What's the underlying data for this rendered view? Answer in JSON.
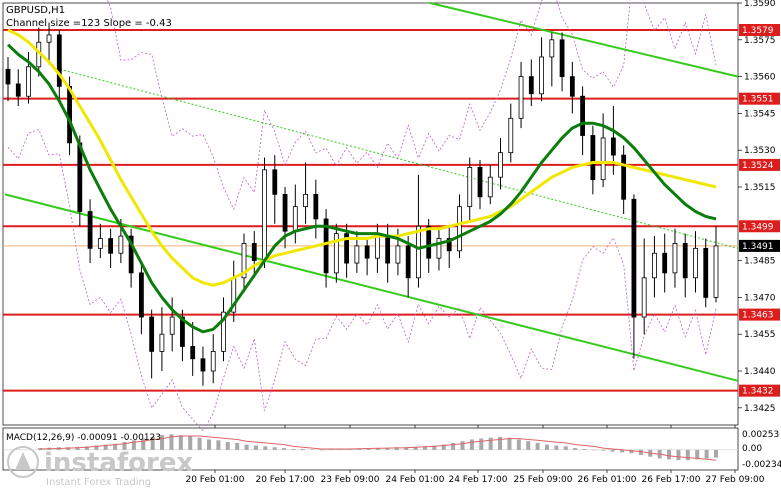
{
  "header": {
    "symbol_label": "GBPUSD,H1",
    "channel_label": "Channel size =123 Slope = -0.43"
  },
  "macd": {
    "label": "MACD(12,26,9) -0.00091 -0.00123",
    "ticks": [
      "0.00253",
      "0.00",
      "-0.00234"
    ],
    "histogram": [
      0.0002,
      0.00025,
      0.0003,
      0.0003,
      0.00035,
      0.0004,
      0.0005,
      0.0006,
      0.0007,
      0.0009,
      0.0011,
      0.0013,
      0.0015,
      0.0017,
      0.0018,
      0.0017,
      0.0016,
      0.0014,
      0.0012,
      0.0011,
      0.0009,
      0.0008,
      0.0006,
      0.0005,
      0.0004,
      0.0003,
      0.0002,
      0.0001,
      0.0001,
      5e-05,
      0,
      5e-05,
      0.0001,
      0.0001,
      0.00015,
      0.0002,
      0.0002,
      0.00025,
      0.0003,
      0.0003,
      0.00035,
      0.0004,
      0.0005,
      0.0006,
      0.0008,
      0.001,
      0.0012,
      0.0013,
      0.0014,
      0.0015,
      0.0014,
      0.0012,
      0.001,
      0.0008,
      0.0006,
      0.0005,
      0.0004,
      0.0002,
      0.0001,
      0,
      -0.0001,
      -0.0002,
      -0.0003,
      -0.0004,
      -0.0006,
      -0.0008,
      -0.001,
      -0.0011,
      -0.0012,
      -0.0012,
      -0.0011,
      -0.001,
      -0.0009
    ],
    "signal": [
      0.0001,
      0.00012,
      0.00015,
      0.0002,
      0.00025,
      0.0003,
      0.0004,
      0.0005,
      0.0006,
      0.0007,
      0.0009,
      0.001,
      0.0012,
      0.0013,
      0.0015,
      0.0016,
      0.0016,
      0.0016,
      0.0015,
      0.0014,
      0.0013,
      0.0012,
      0.001,
      0.0009,
      0.0008,
      0.0007,
      0.0006,
      0.0004,
      0.0003,
      0.0002,
      0.0001,
      0.0001,
      0.0001,
      0.0001,
      0.00012,
      0.00015,
      0.00018,
      0.0002,
      0.00022,
      0.00025,
      0.0003,
      0.00035,
      0.0004,
      0.0005,
      0.0006,
      0.0007,
      0.0009,
      0.001,
      0.0011,
      0.0012,
      0.0013,
      0.0013,
      0.0012,
      0.0011,
      0.001,
      0.0009,
      0.0008,
      0.0006,
      0.0005,
      0.0004,
      0.0002,
      0.0001,
      0,
      -0.0001,
      -0.0002,
      -0.0004,
      -0.0005,
      -0.0007,
      -0.0008,
      -0.0009,
      -0.001,
      -0.0011,
      -0.0012
    ]
  },
  "colors": {
    "level_line": "#dd1c1c",
    "channel": "#33cc1a",
    "ma_green": "#0b7d0b",
    "ma_yellow": "#f0e800",
    "bollinger": "#c05ad0",
    "candle": "#000000",
    "macd_hist": "#a8a8a8",
    "macd_signal": "#e06464",
    "current_price": "#f5b07a"
  },
  "logo": {
    "brand": "instaforex",
    "tagline": "Instant Forex Trading"
  },
  "chart_data": {
    "type": "candlestick",
    "symbol": "GBPUSD",
    "timeframe": "H1",
    "ylim": [
      1.3418,
      1.359
    ],
    "y_ticks": [
      "1.3590",
      "1.3575",
      "1.3560",
      "1.3545",
      "1.3530",
      "1.3515",
      "1.3485",
      "1.3470",
      "1.3455",
      "1.3440",
      "1.3425"
    ],
    "x_ticks": [
      "20 Feb 01:00",
      "20 Feb 17:00",
      "23 Feb 09:00",
      "24 Feb 01:00",
      "24 Feb 17:00",
      "25 Feb 09:00",
      "26 Feb 01:00",
      "26 Feb 17:00",
      "27 Feb 09:00"
    ],
    "levels": [
      {
        "label": "1.3579",
        "value": 1.3579
      },
      {
        "label": "1.3551",
        "value": 1.3551
      },
      {
        "label": "1.3524",
        "value": 1.3524
      },
      {
        "label": "1.3499",
        "value": 1.3499
      },
      {
        "label": "1.3463",
        "value": 1.3463
      },
      {
        "label": "1.3432",
        "value": 1.3432
      }
    ],
    "current_price": {
      "label": "1.3491",
      "value": 1.3491
    },
    "channel": {
      "upper": [
        {
          "x": 430,
          "y": 1.359
        },
        {
          "x": 738,
          "y": 1.356
        }
      ],
      "mid": [
        {
          "x": 60,
          "y": 1.3563
        },
        {
          "x": 738,
          "y": 1.349
        }
      ],
      "lower": [
        {
          "x": 5,
          "y": 1.3512
        },
        {
          "x": 738,
          "y": 1.3436
        }
      ]
    },
    "candles": [
      [
        1.3563,
        1.3557,
        1.3568,
        1.355
      ],
      [
        1.3557,
        1.3552,
        1.3563,
        1.3548
      ],
      [
        1.3552,
        1.3564,
        1.357,
        1.3549
      ],
      [
        1.3564,
        1.3574,
        1.358,
        1.356
      ],
      [
        1.3574,
        1.3577,
        1.3582,
        1.3565
      ],
      [
        1.3577,
        1.3556,
        1.3579,
        1.355
      ],
      [
        1.3556,
        1.3533,
        1.356,
        1.3528
      ],
      [
        1.3533,
        1.3505,
        1.3536,
        1.3499
      ],
      [
        1.3505,
        1.349,
        1.351,
        1.3484
      ],
      [
        1.349,
        1.3494,
        1.35,
        1.3486
      ],
      [
        1.3494,
        1.3488,
        1.3498,
        1.3482
      ],
      [
        1.3488,
        1.3495,
        1.3502,
        1.3484
      ],
      [
        1.3495,
        1.348,
        1.3498,
        1.3474
      ],
      [
        1.348,
        1.3462,
        1.3483,
        1.3455
      ],
      [
        1.3462,
        1.3448,
        1.3465,
        1.3437
      ],
      [
        1.3448,
        1.3455,
        1.3466,
        1.344
      ],
      [
        1.3455,
        1.3462,
        1.347,
        1.3448
      ],
      [
        1.3462,
        1.345,
        1.3465,
        1.3444
      ],
      [
        1.345,
        1.3445,
        1.346,
        1.3438
      ],
      [
        1.3445,
        1.344,
        1.345,
        1.3434
      ],
      [
        1.344,
        1.3448,
        1.3455,
        1.3435
      ],
      [
        1.3448,
        1.3464,
        1.347,
        1.3444
      ],
      [
        1.3464,
        1.3478,
        1.3485,
        1.346
      ],
      [
        1.3478,
        1.3492,
        1.3496,
        1.3472
      ],
      [
        1.3492,
        1.3485,
        1.3497,
        1.3478
      ],
      [
        1.3485,
        1.3522,
        1.3527,
        1.3482
      ],
      [
        1.3522,
        1.3512,
        1.3528,
        1.35
      ],
      [
        1.3512,
        1.3497,
        1.3515,
        1.349
      ],
      [
        1.3497,
        1.3507,
        1.3516,
        1.3492
      ],
      [
        1.3507,
        1.3512,
        1.3525,
        1.35
      ],
      [
        1.3512,
        1.3502,
        1.3518,
        1.3494
      ],
      [
        1.3502,
        1.348,
        1.3506,
        1.3474
      ],
      [
        1.348,
        1.3496,
        1.35,
        1.3476
      ],
      [
        1.3496,
        1.3484,
        1.35,
        1.3478
      ],
      [
        1.3484,
        1.3491,
        1.3497,
        1.348
      ],
      [
        1.3491,
        1.3486,
        1.3494,
        1.3479
      ],
      [
        1.3486,
        1.3495,
        1.35,
        1.348
      ],
      [
        1.3495,
        1.3484,
        1.35,
        1.3476
      ],
      [
        1.3484,
        1.3491,
        1.3498,
        1.3479
      ],
      [
        1.3491,
        1.3478,
        1.3495,
        1.347
      ],
      [
        1.3478,
        1.3499,
        1.352,
        1.3474
      ],
      [
        1.3499,
        1.3486,
        1.3502,
        1.348
      ],
      [
        1.3486,
        1.3494,
        1.3498,
        1.3481
      ],
      [
        1.3494,
        1.3489,
        1.3499,
        1.3482
      ],
      [
        1.3489,
        1.3507,
        1.3512,
        1.3486
      ],
      [
        1.3507,
        1.3523,
        1.3527,
        1.3501
      ],
      [
        1.3523,
        1.3511,
        1.3526,
        1.3506
      ],
      [
        1.3511,
        1.3519,
        1.3524,
        1.3508
      ],
      [
        1.3519,
        1.3529,
        1.3535,
        1.3514
      ],
      [
        1.3529,
        1.3543,
        1.3549,
        1.3525
      ],
      [
        1.3543,
        1.356,
        1.3566,
        1.3539
      ],
      [
        1.356,
        1.3553,
        1.3567,
        1.3548
      ],
      [
        1.3553,
        1.3568,
        1.3576,
        1.355
      ],
      [
        1.3568,
        1.3575,
        1.3578,
        1.3556
      ],
      [
        1.3575,
        1.356,
        1.3578,
        1.3554
      ],
      [
        1.356,
        1.3552,
        1.3566,
        1.3545
      ],
      [
        1.3552,
        1.3536,
        1.3556,
        1.3528
      ],
      [
        1.3536,
        1.3518,
        1.354,
        1.3512
      ],
      [
        1.3518,
        1.3535,
        1.3545,
        1.3515
      ],
      [
        1.3535,
        1.3528,
        1.3548,
        1.352
      ],
      [
        1.3528,
        1.351,
        1.3532,
        1.3504
      ],
      [
        1.351,
        1.3462,
        1.3512,
        1.3445
      ],
      [
        1.3462,
        1.3478,
        1.3494,
        1.3455
      ],
      [
        1.3478,
        1.3488,
        1.3495,
        1.347
      ],
      [
        1.3488,
        1.348,
        1.3496,
        1.3472
      ],
      [
        1.348,
        1.3492,
        1.3498,
        1.3474
      ],
      [
        1.3492,
        1.3478,
        1.3496,
        1.347
      ],
      [
        1.3478,
        1.349,
        1.3497,
        1.3472
      ],
      [
        1.349,
        1.347,
        1.3494,
        1.3466
      ],
      [
        1.347,
        1.3491,
        1.3499,
        1.3468
      ]
    ],
    "ma_green": [
      1.3573,
      1.3569,
      1.3566,
      1.3562,
      1.3557,
      1.355,
      1.3542,
      1.3532,
      1.3522,
      1.3514,
      1.3506,
      1.3499,
      1.3492,
      1.3484,
      1.3476,
      1.347,
      1.3465,
      1.3461,
      1.3458,
      1.3456,
      1.3457,
      1.3461,
      1.3467,
      1.3473,
      1.3479,
      1.3485,
      1.3491,
      1.3495,
      1.3497,
      1.3498,
      1.3499,
      1.3499,
      1.3498,
      1.3497,
      1.3496,
      1.3496,
      1.3496,
      1.3495,
      1.3494,
      1.3492,
      1.349,
      1.3491,
      1.3492,
      1.3493,
      1.3495,
      1.3497,
      1.3499,
      1.3501,
      1.3504,
      1.3508,
      1.3513,
      1.3519,
      1.3525,
      1.353,
      1.3535,
      1.3539,
      1.3541,
      1.3541,
      1.354,
      1.3538,
      1.3535,
      1.3531,
      1.3526,
      1.3521,
      1.3516,
      1.3512,
      1.3508,
      1.3505,
      1.3503,
      1.3502
    ],
    "ma_yellow": [
      1.3579,
      1.3577,
      1.3574,
      1.357,
      1.3566,
      1.3561,
      1.3555,
      1.3548,
      1.3541,
      1.3534,
      1.3526,
      1.3518,
      1.3511,
      1.3504,
      1.3497,
      1.3491,
      1.3486,
      1.3482,
      1.3478,
      1.3476,
      1.3475,
      1.3476,
      1.3478,
      1.348,
      1.3483,
      1.3485,
      1.3487,
      1.3488,
      1.3489,
      1.349,
      1.3491,
      1.3492,
      1.3493,
      1.3494,
      1.3494,
      1.3494,
      1.3495,
      1.3495,
      1.3495,
      1.3496,
      1.3497,
      1.3498,
      1.3498,
      1.3499,
      1.35,
      1.3501,
      1.3502,
      1.3503,
      1.3505,
      1.3507,
      1.351,
      1.3513,
      1.3516,
      1.3519,
      1.3521,
      1.3523,
      1.3524,
      1.3525,
      1.3525,
      1.3525,
      1.3524,
      1.3523,
      1.3522,
      1.3521,
      1.352,
      1.3519,
      1.3518,
      1.3517,
      1.3516,
      1.3515
    ]
  }
}
